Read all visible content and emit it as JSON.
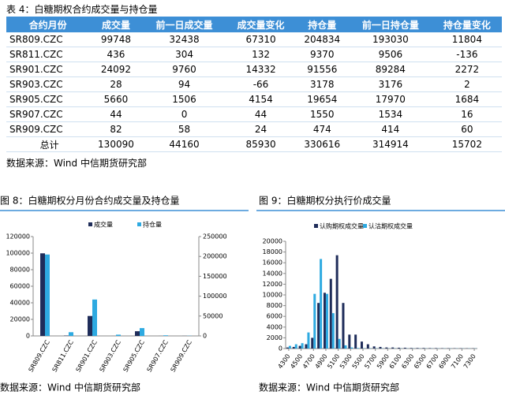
{
  "table": {
    "caption": "表 4：白糖期权合约成交量与持仓量",
    "headers": [
      "合约月份",
      "成交量",
      "前一日成交量",
      "成交量变化",
      "持仓量",
      "前一日持仓量",
      "持仓量变化"
    ],
    "rows": [
      [
        "SR809.CZC",
        99748,
        32438,
        67310,
        204834,
        193030,
        11804
      ],
      [
        "SR811.CZC",
        436,
        304,
        132,
        9370,
        9506,
        -136
      ],
      [
        "SR901.CZC",
        24092,
        9760,
        14332,
        91556,
        89284,
        2272
      ],
      [
        "SR903.CZC",
        28,
        94,
        -66,
        3178,
        3176,
        2
      ],
      [
        "SR905.CZC",
        5660,
        1506,
        4154,
        19654,
        17970,
        1684
      ],
      [
        "SR907.CZC",
        44,
        0,
        44,
        1550,
        1534,
        16
      ],
      [
        "SR909.CZC",
        82,
        58,
        24,
        474,
        414,
        60
      ],
      [
        "总计",
        130090,
        44160,
        85930,
        330616,
        314914,
        15702
      ]
    ],
    "source": "数据来源：Wind 中信期货研究部"
  },
  "chart_data": [
    {
      "type": "bar",
      "title": "图 8：白糖期权分月份合约成交量及持仓量",
      "categories": [
        "SR809.CZC",
        "SR811.CZC",
        "SR901.CZC",
        "SR903.CZC",
        "SR905.CZC",
        "SR907.CZC",
        "SR909.CZC"
      ],
      "series": [
        {
          "name": "成交量",
          "color": "#1f2d5a",
          "values": [
            99748,
            436,
            24092,
            28,
            5660,
            44,
            82
          ]
        },
        {
          "name": "持仓量",
          "color": "#2eaae1",
          "axis": "y2",
          "values": [
            204834,
            9370,
            91556,
            3178,
            19654,
            1550,
            474
          ]
        }
      ],
      "ylim": [
        0,
        120000
      ],
      "yticks": [
        0,
        20000,
        40000,
        60000,
        80000,
        100000,
        120000
      ],
      "y2lim": [
        0,
        250000
      ],
      "y2ticks": [
        0,
        50000,
        100000,
        150000,
        200000,
        250000
      ],
      "source": "数据来源：Wind 中信期货研究部"
    },
    {
      "type": "bar",
      "title": "图 9：白糖期权分执行价成交量",
      "x": [
        4300,
        4400,
        4500,
        4600,
        4700,
        4800,
        4900,
        5000,
        5100,
        5200,
        5300,
        5400,
        5500,
        5600,
        5700,
        5800,
        5900,
        6000,
        6100,
        6200,
        6300,
        6400,
        6500,
        6600,
        6700,
        6800,
        6900,
        7000,
        7100,
        7200,
        7300
      ],
      "series": [
        {
          "name": "认购期权成交量",
          "color": "#1f2d5a",
          "values": [
            200,
            300,
            500,
            800,
            2000,
            8500,
            10400,
            13000,
            17400,
            8500,
            2600,
            2600,
            1300,
            800,
            400,
            300,
            200,
            200,
            150,
            150,
            100,
            100,
            100,
            80,
            80,
            60,
            60,
            50,
            50,
            40,
            40
          ]
        },
        {
          "name": "认沽期权成交量",
          "color": "#2eaae1",
          "values": [
            500,
            800,
            1000,
            3000,
            10200,
            16700,
            10200,
            6600,
            1800,
            600,
            200,
            100,
            50,
            50,
            40,
            40,
            30,
            30,
            30,
            30,
            30,
            30,
            30,
            30,
            30,
            30,
            30,
            30,
            30,
            30,
            30
          ]
        }
      ],
      "xlim": [
        4250,
        7350
      ],
      "xticks": [
        4300,
        4500,
        4700,
        4900,
        5100,
        5300,
        5500,
        5700,
        5900,
        6100,
        6300,
        6500,
        6700,
        6900,
        7100,
        7300
      ],
      "ylim": [
        0,
        20000
      ],
      "yticks": [
        0,
        2000,
        4000,
        6000,
        8000,
        10000,
        12000,
        14000,
        16000,
        18000,
        20000
      ],
      "source": "数据来源：Wind 中信期货研究部"
    }
  ]
}
